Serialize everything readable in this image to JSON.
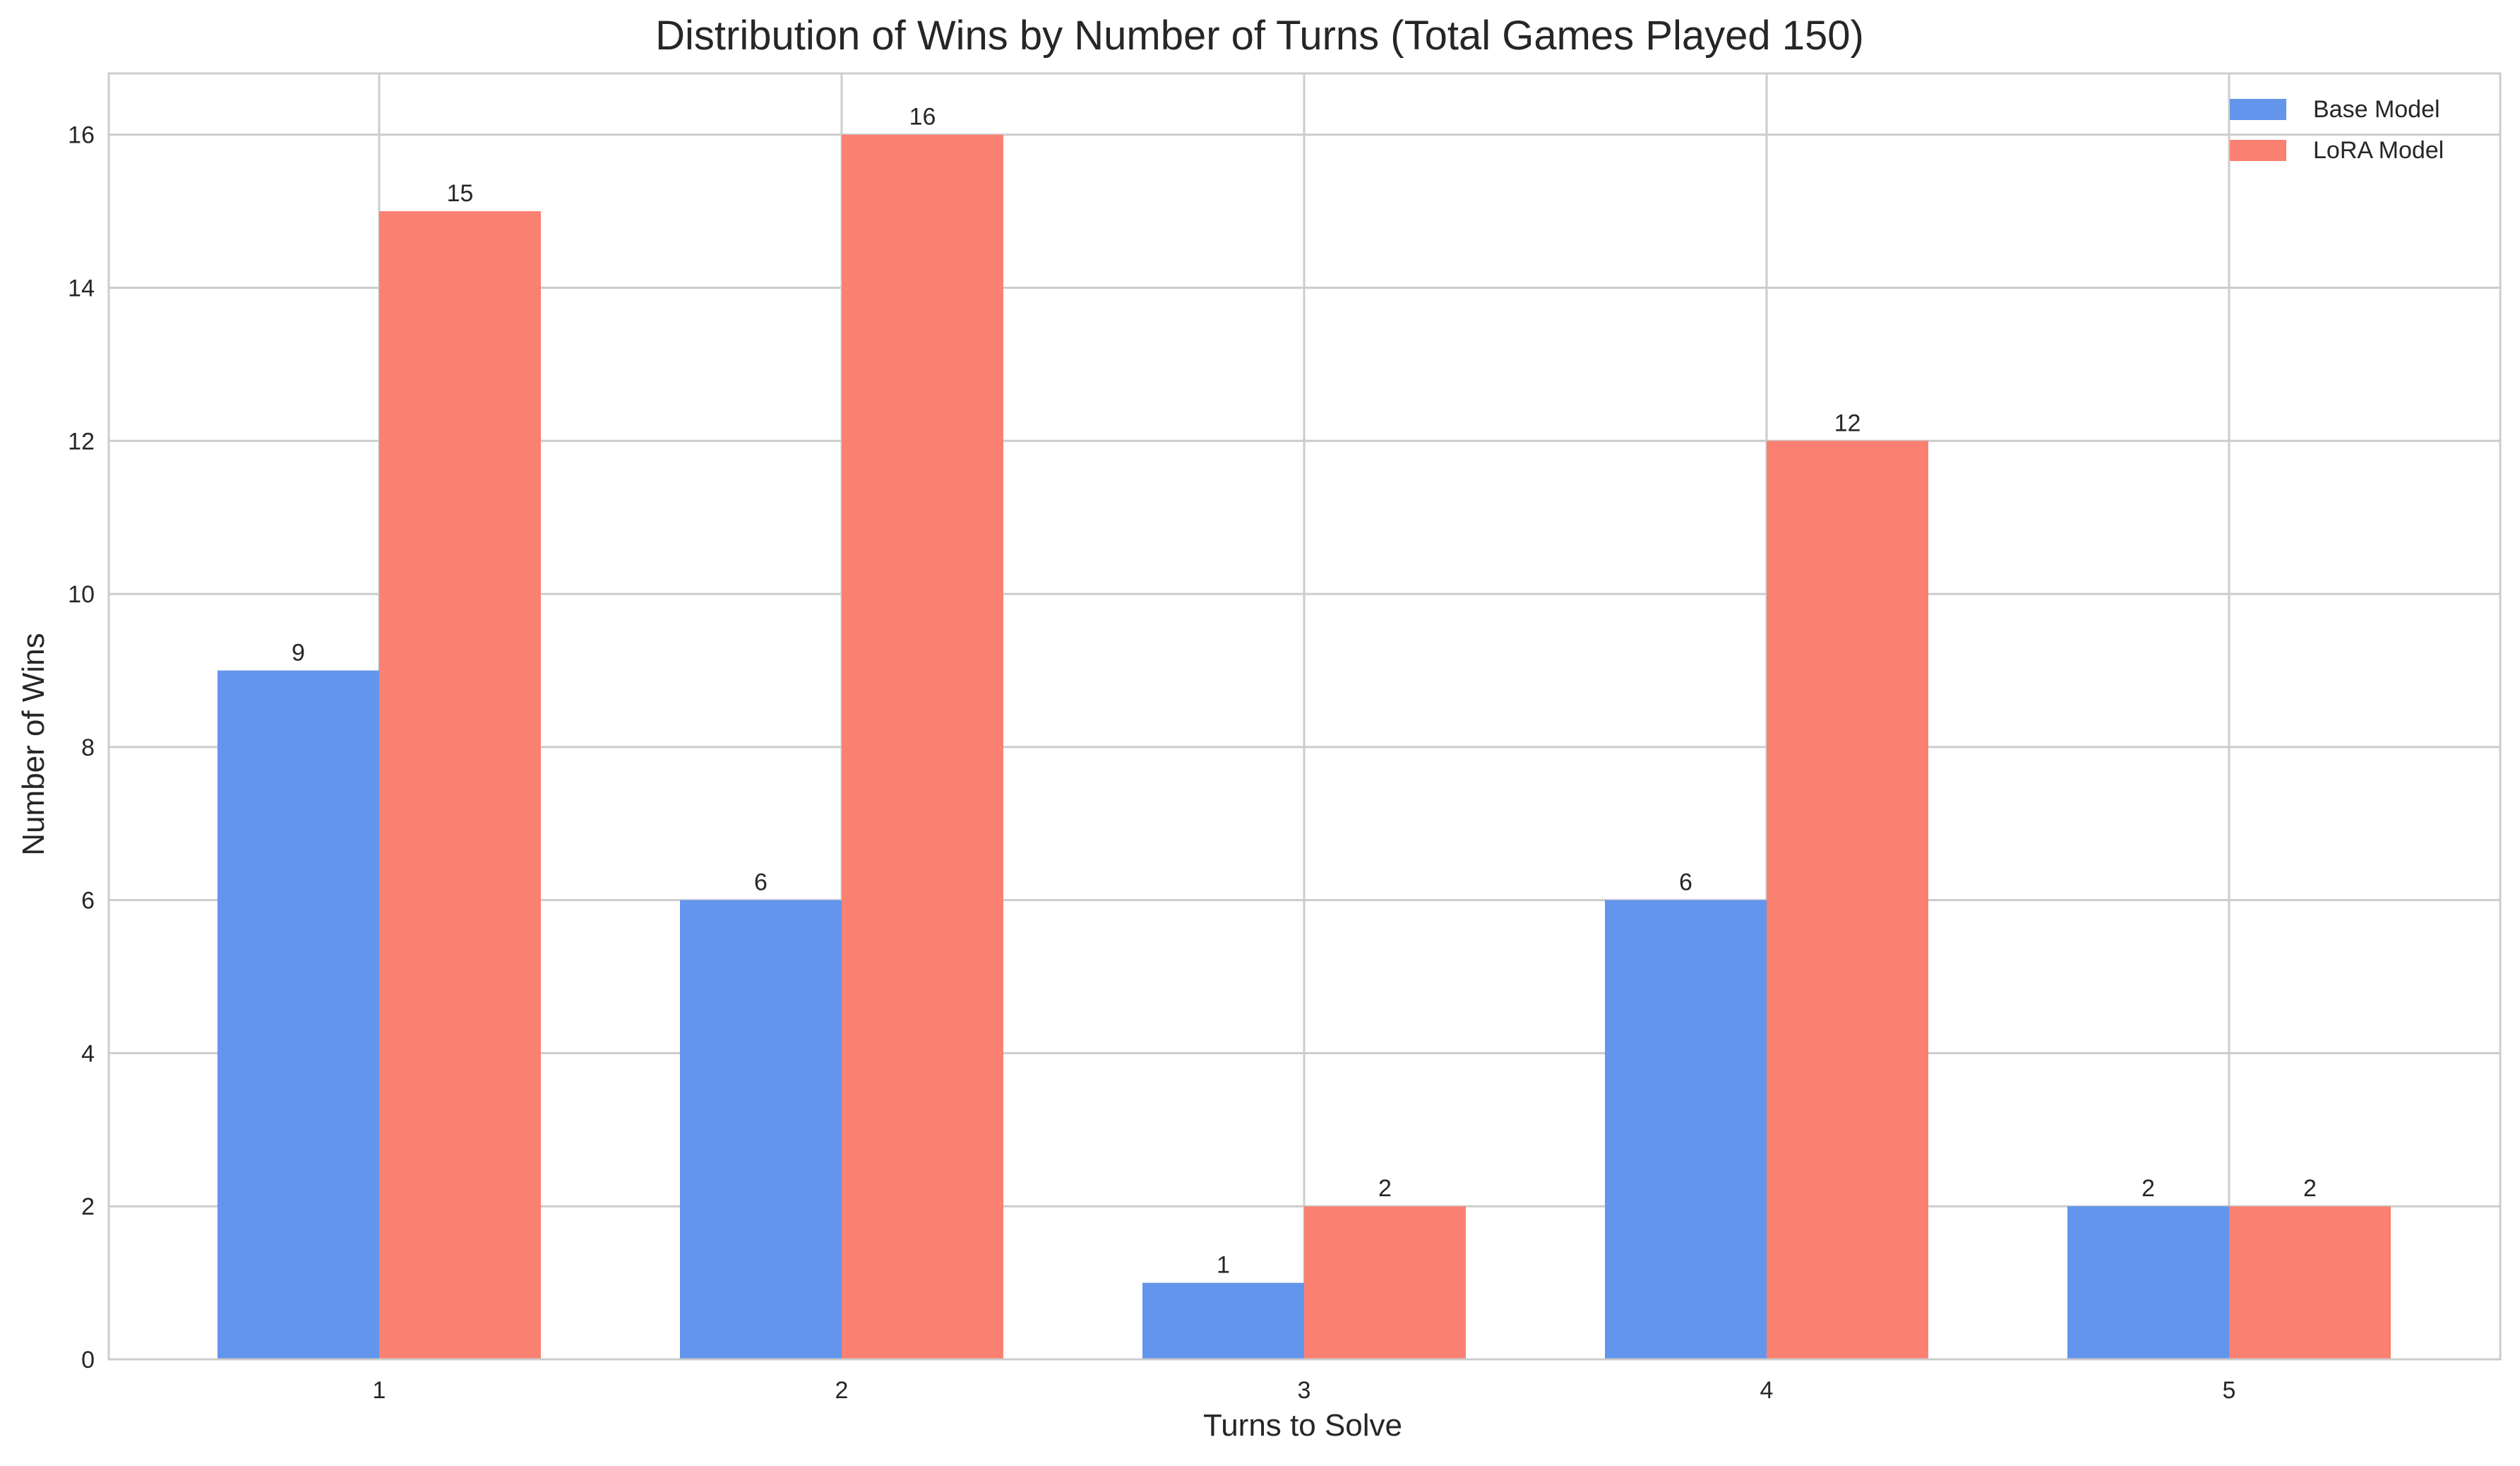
{
  "chart_data": {
    "type": "bar",
    "title": "Distribution of Wins by Number of Turns (Total Games Played 150)",
    "xlabel": "Turns to Solve",
    "ylabel": "Number of Wins",
    "categories": [
      "1",
      "2",
      "3",
      "4",
      "5"
    ],
    "series": [
      {
        "name": "Base Model",
        "color": "#6495ED",
        "values": [
          9,
          6,
          1,
          6,
          2
        ]
      },
      {
        "name": "LoRA Model",
        "color": "#FA8072",
        "values": [
          15,
          16,
          2,
          12,
          2
        ]
      }
    ],
    "ylim": [
      0,
      16.8
    ],
    "yticks": [
      0,
      2,
      4,
      6,
      8,
      10,
      12,
      14,
      16
    ],
    "grid": true,
    "legend": "top-right",
    "data_labels": true
  }
}
